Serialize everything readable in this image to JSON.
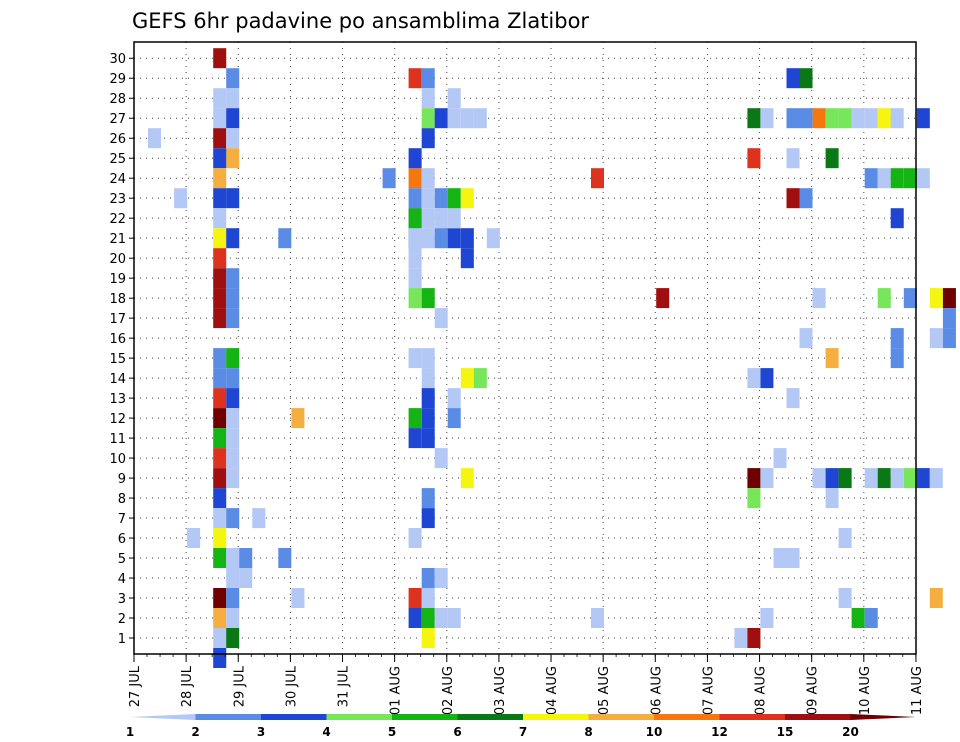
{
  "chart_data": {
    "type": "heatmap",
    "title": "GEFS 6hr padavine po ansamblima Zlatibor",
    "xlabel": "",
    "ylabel": "",
    "x_tick_labels": [
      "27 JUL",
      "28 JUL",
      "29 JUL",
      "30 JUL",
      "31 JUL",
      "01 AUG",
      "02 AUG",
      "03 AUG",
      "04 AUG",
      "05 AUG",
      "06 AUG",
      "07 AUG",
      "08 AUG",
      "09 AUG",
      "10 AUG",
      "11 AUG"
    ],
    "y_tick_labels": [
      "1",
      "2",
      "3",
      "4",
      "5",
      "6",
      "7",
      "8",
      "9",
      "10",
      "11",
      "12",
      "13",
      "14",
      "15",
      "16",
      "17",
      "18",
      "19",
      "20",
      "21",
      "22",
      "23",
      "24",
      "25",
      "26",
      "27",
      "28",
      "29",
      "30"
    ],
    "xlim_steps": [
      0,
      60
    ],
    "ylim": [
      0,
      30
    ],
    "grid": true,
    "colorbar": {
      "levels": [
        "1",
        "2",
        "3",
        "4",
        "5",
        "6",
        "7",
        "8",
        "10",
        "12",
        "15",
        "20"
      ],
      "colors": [
        "#b4c8f5",
        "#5a8ce6",
        "#1e46d2",
        "#78e65a",
        "#14b414",
        "#0a7814",
        "#f5f50f",
        "#f5af41",
        "#f5780f",
        "#dc321e",
        "#a00f0f",
        "#6e0000"
      ]
    },
    "cells_columns": [
      "time_step",
      "member",
      "color_index"
    ],
    "cells": [
      [
        6,
        30,
        10
      ],
      [
        7,
        29,
        1
      ],
      [
        7,
        28,
        0
      ],
      [
        6,
        28,
        0
      ],
      [
        6,
        27,
        0
      ],
      [
        7,
        27,
        2
      ],
      [
        6,
        26,
        10
      ],
      [
        7,
        26,
        0
      ],
      [
        1,
        26,
        0
      ],
      [
        7,
        25,
        7
      ],
      [
        6,
        25,
        2
      ],
      [
        6,
        24,
        7
      ],
      [
        6,
        23,
        2
      ],
      [
        7,
        23,
        2
      ],
      [
        3,
        23,
        0
      ],
      [
        6,
        22,
        0
      ],
      [
        6,
        21,
        6
      ],
      [
        7,
        21,
        2
      ],
      [
        6,
        20,
        9
      ],
      [
        6,
        19,
        10
      ],
      [
        7,
        19,
        1
      ],
      [
        6,
        18,
        10
      ],
      [
        7,
        18,
        1
      ],
      [
        6,
        17,
        10
      ],
      [
        7,
        17,
        1
      ],
      [
        6,
        15,
        1
      ],
      [
        7,
        15,
        4
      ],
      [
        6,
        14,
        1
      ],
      [
        7,
        14,
        1
      ],
      [
        6,
        13,
        9
      ],
      [
        7,
        13,
        2
      ],
      [
        6,
        12,
        11
      ],
      [
        7,
        12,
        0
      ],
      [
        6,
        11,
        4
      ],
      [
        7,
        11,
        0
      ],
      [
        6,
        10,
        9
      ],
      [
        7,
        10,
        0
      ],
      [
        6,
        9,
        10
      ],
      [
        7,
        9,
        0
      ],
      [
        6,
        8,
        2
      ],
      [
        6,
        7,
        0
      ],
      [
        7,
        7,
        1
      ],
      [
        6,
        6,
        6
      ],
      [
        4,
        6,
        0
      ],
      [
        6,
        5,
        4
      ],
      [
        7,
        5,
        0
      ],
      [
        7,
        4,
        0
      ],
      [
        6,
        3,
        11
      ],
      [
        7,
        3,
        1
      ],
      [
        6,
        2,
        7
      ],
      [
        7,
        2,
        0
      ],
      [
        6,
        1,
        0
      ],
      [
        7,
        1,
        5
      ],
      [
        6,
        0,
        2
      ],
      [
        8,
        5,
        1
      ],
      [
        8,
        4,
        0
      ],
      [
        9,
        7,
        0
      ],
      [
        12,
        12,
        7
      ],
      [
        11,
        21,
        1
      ],
      [
        11,
        5,
        1
      ],
      [
        12,
        3,
        0
      ],
      [
        19,
        24,
        1
      ],
      [
        21,
        29,
        9
      ],
      [
        22,
        29,
        1
      ],
      [
        21,
        24,
        8
      ],
      [
        21,
        25,
        2
      ],
      [
        21,
        23,
        1
      ],
      [
        21,
        22,
        1
      ],
      [
        21,
        21,
        2
      ],
      [
        21,
        20,
        0
      ],
      [
        21,
        19,
        0
      ],
      [
        22,
        28,
        0
      ],
      [
        22,
        27,
        3
      ],
      [
        23,
        27,
        2
      ],
      [
        22,
        26,
        2
      ],
      [
        22,
        24,
        0
      ],
      [
        23,
        23,
        1
      ],
      [
        22,
        23,
        0
      ],
      [
        22,
        22,
        0
      ],
      [
        21,
        22,
        4
      ],
      [
        23,
        22,
        0
      ],
      [
        21,
        21,
        0
      ],
      [
        22,
        21,
        0
      ],
      [
        23,
        21,
        1
      ],
      [
        24,
        21,
        2
      ],
      [
        25,
        21,
        2
      ],
      [
        24,
        22,
        0
      ],
      [
        25,
        20,
        2
      ],
      [
        24,
        23,
        4
      ],
      [
        25,
        23,
        6
      ],
      [
        21,
        18,
        3
      ],
      [
        22,
        18,
        4
      ],
      [
        23,
        17,
        0
      ],
      [
        21,
        15,
        0
      ],
      [
        22,
        15,
        0
      ],
      [
        22,
        14,
        0
      ],
      [
        24,
        13,
        0
      ],
      [
        25,
        14,
        6
      ],
      [
        26,
        14,
        3
      ],
      [
        22,
        13,
        2
      ],
      [
        22,
        12,
        2
      ],
      [
        24,
        12,
        1
      ],
      [
        21,
        12,
        4
      ],
      [
        21,
        11,
        2
      ],
      [
        22,
        11,
        2
      ],
      [
        23,
        10,
        0
      ],
      [
        25,
        9,
        6
      ],
      [
        22,
        8,
        1
      ],
      [
        22,
        7,
        2
      ],
      [
        21,
        6,
        0
      ],
      [
        22,
        4,
        1
      ],
      [
        23,
        4,
        0
      ],
      [
        22,
        3,
        0
      ],
      [
        21,
        3,
        9
      ],
      [
        21,
        2,
        2
      ],
      [
        22,
        2,
        4
      ],
      [
        23,
        2,
        0
      ],
      [
        24,
        2,
        0
      ],
      [
        22,
        1,
        6
      ],
      [
        24,
        28,
        0
      ],
      [
        24,
        27,
        0
      ],
      [
        25,
        27,
        0
      ],
      [
        26,
        27,
        0
      ],
      [
        27,
        21,
        0
      ],
      [
        35,
        24,
        9
      ],
      [
        35,
        2,
        0
      ],
      [
        40,
        18,
        10
      ],
      [
        46,
        1,
        0
      ],
      [
        47,
        27,
        5
      ],
      [
        48,
        27,
        0
      ],
      [
        47,
        25,
        9
      ],
      [
        48,
        14,
        2
      ],
      [
        47,
        14,
        0
      ],
      [
        47,
        9,
        11
      ],
      [
        48,
        9,
        0
      ],
      [
        47,
        8,
        3
      ],
      [
        47,
        1,
        10
      ],
      [
        48,
        2,
        0
      ],
      [
        49,
        10,
        0
      ],
      [
        49,
        5,
        0
      ],
      [
        50,
        5,
        0
      ],
      [
        50,
        13,
        0
      ],
      [
        50,
        25,
        0
      ],
      [
        50,
        23,
        10
      ],
      [
        51,
        23,
        1
      ],
      [
        50,
        29,
        2
      ],
      [
        51,
        29,
        5
      ],
      [
        50,
        27,
        1
      ],
      [
        51,
        27,
        1
      ],
      [
        52,
        27,
        8
      ],
      [
        53,
        27,
        3
      ],
      [
        54,
        27,
        3
      ],
      [
        55,
        27,
        0
      ],
      [
        56,
        27,
        0
      ],
      [
        57,
        27,
        6
      ],
      [
        58,
        27,
        0
      ],
      [
        60,
        27,
        2
      ],
      [
        51,
        16,
        0
      ],
      [
        52,
        18,
        0
      ],
      [
        53,
        15,
        7
      ],
      [
        53,
        25,
        5
      ],
      [
        52,
        9,
        0
      ],
      [
        53,
        9,
        2
      ],
      [
        54,
        9,
        5
      ],
      [
        53,
        8,
        0
      ],
      [
        54,
        6,
        0
      ],
      [
        54,
        3,
        0
      ],
      [
        55,
        2,
        4
      ],
      [
        56,
        2,
        1
      ],
      [
        56,
        9,
        0
      ],
      [
        57,
        9,
        5
      ],
      [
        58,
        9,
        0
      ],
      [
        59,
        9,
        3
      ],
      [
        60,
        9,
        2
      ],
      [
        61,
        9,
        0
      ],
      [
        56,
        24,
        1
      ],
      [
        57,
        24,
        0
      ],
      [
        58,
        24,
        4
      ],
      [
        59,
        24,
        4
      ],
      [
        60,
        24,
        0
      ],
      [
        58,
        22,
        2
      ],
      [
        57,
        18,
        3
      ],
      [
        59,
        18,
        1
      ],
      [
        61,
        18,
        6
      ],
      [
        62,
        18,
        11
      ],
      [
        58,
        16,
        1
      ],
      [
        58,
        15,
        1
      ],
      [
        61,
        16,
        0
      ],
      [
        62,
        16,
        1
      ],
      [
        62,
        17,
        1
      ],
      [
        61,
        3,
        7
      ]
    ]
  }
}
